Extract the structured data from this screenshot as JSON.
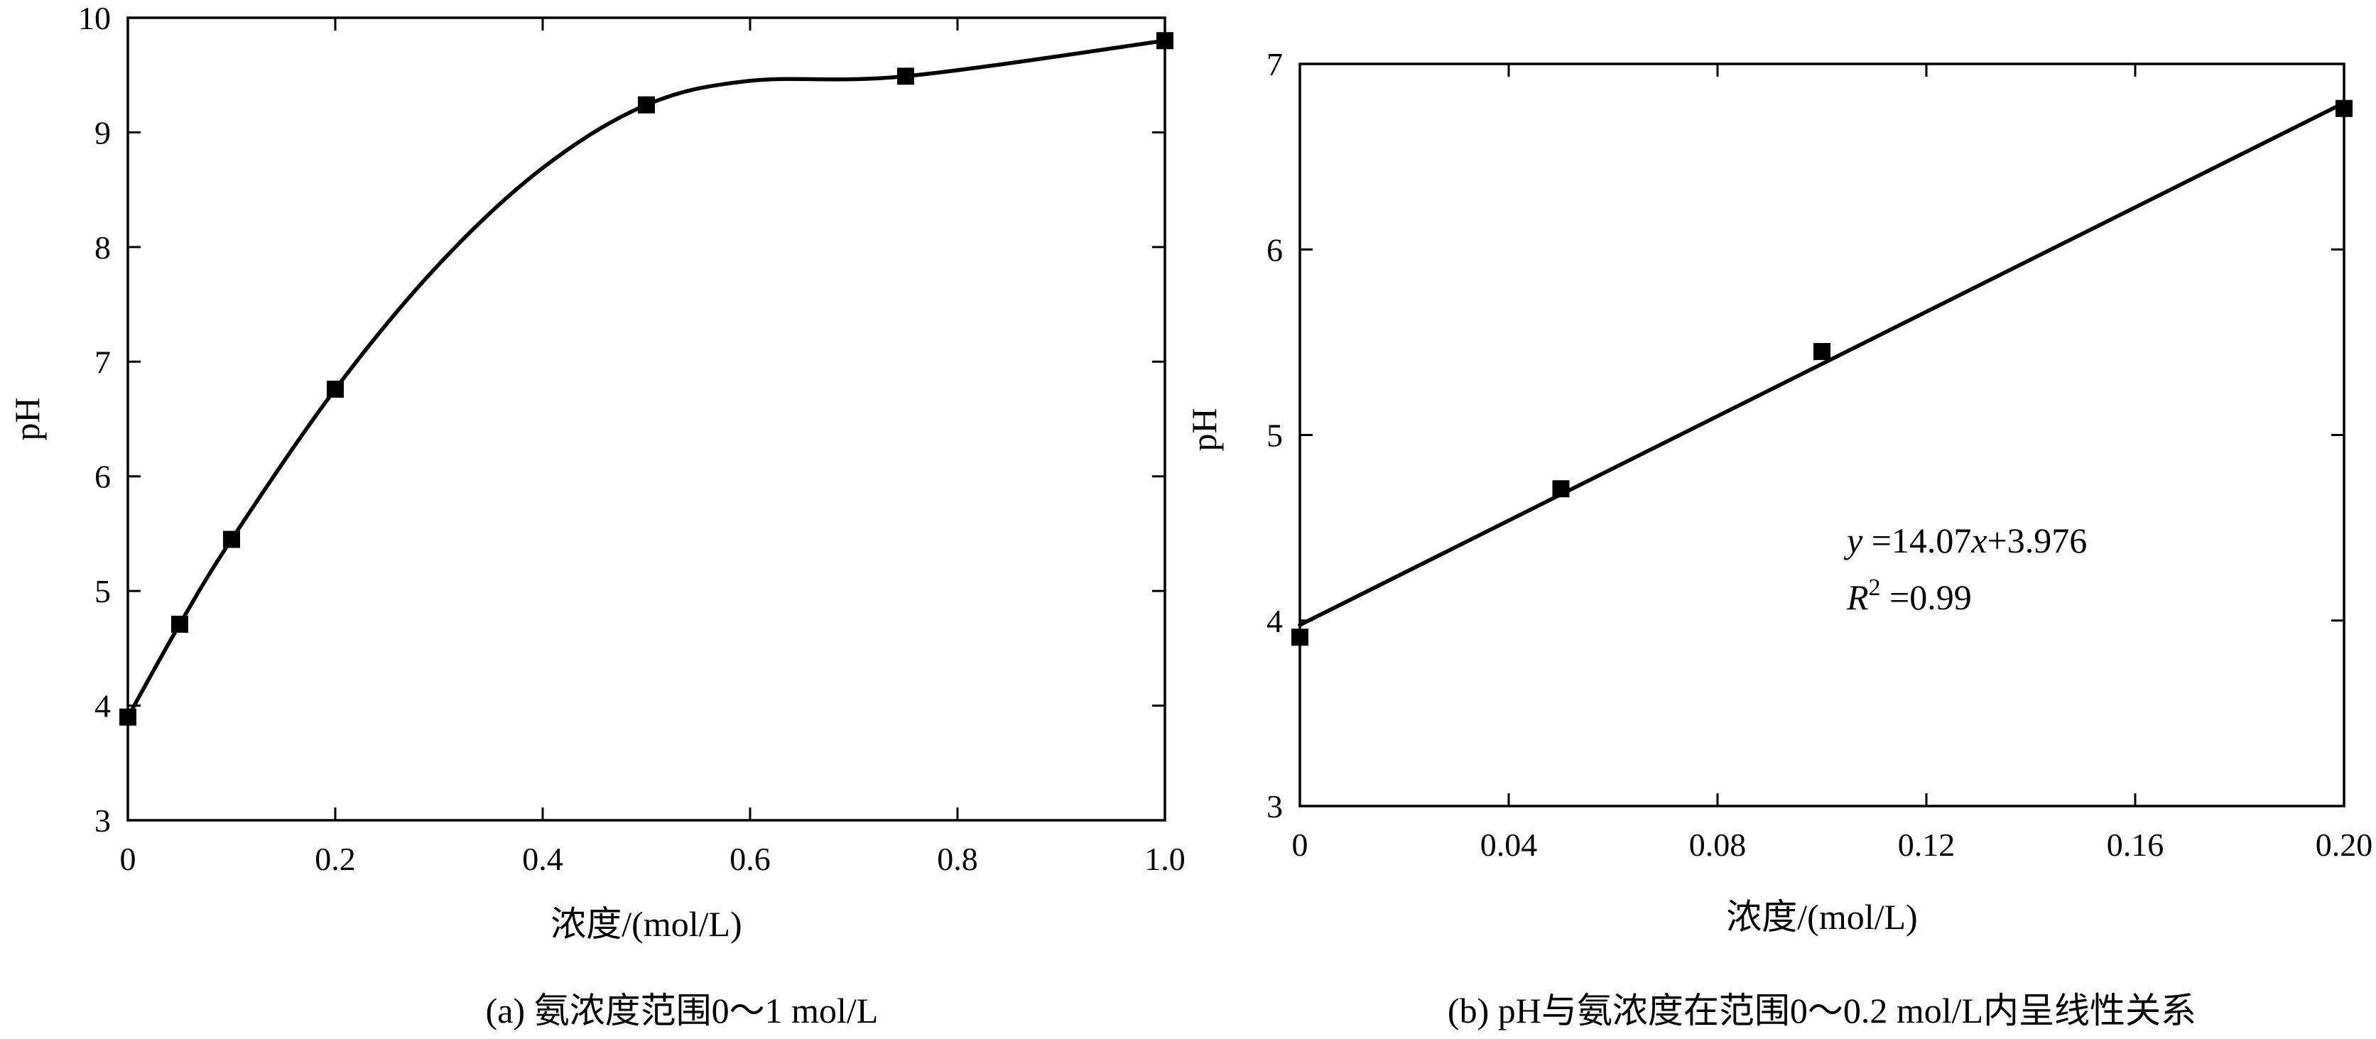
{
  "chart_data": [
    {
      "type": "line",
      "caption": "(a) 氨浓度范围0～1 mol/L",
      "xlabel": "浓度/(mol/L)",
      "ylabel": "pH",
      "xlim": [
        0,
        1.0
      ],
      "ylim": [
        3,
        10
      ],
      "xticks": [
        0,
        0.2,
        0.4,
        0.6,
        0.8,
        1.0
      ],
      "xtick_labels": [
        "0",
        "0.2",
        "0.4",
        "0.6",
        "0.8",
        "1.0"
      ],
      "yticks": [
        3,
        4,
        5,
        6,
        7,
        8,
        9,
        10
      ],
      "ytick_labels": [
        "3",
        "4",
        "5",
        "6",
        "7",
        "8",
        "9",
        "10"
      ],
      "grid": false,
      "series": [
        {
          "marker": "square",
          "x": [
            0,
            0.05,
            0.1,
            0.2,
            0.5,
            0.75,
            1.0
          ],
          "y": [
            3.9,
            4.71,
            5.45,
            6.76,
            9.24,
            9.49,
            9.8
          ]
        }
      ],
      "curve": {
        "x": [
          0,
          0.05,
          0.1,
          0.2,
          0.3,
          0.4,
          0.5,
          0.6,
          0.75,
          1.0
        ],
        "y": [
          3.9,
          4.71,
          5.45,
          6.76,
          7.85,
          8.69,
          9.24,
          9.45,
          9.49,
          9.8
        ]
      }
    },
    {
      "type": "scatter",
      "caption": "(b) pH与氨浓度在范围0～0.2 mol/L内呈线性关系",
      "xlabel": "浓度/(mol/L)",
      "ylabel": "pH",
      "xlim": [
        0,
        0.2
      ],
      "ylim": [
        3,
        7
      ],
      "xticks": [
        0,
        0.04,
        0.08,
        0.12,
        0.16,
        0.2
      ],
      "xtick_labels": [
        "0",
        "0.04",
        "0.08",
        "0.12",
        "0.16",
        "0.20"
      ],
      "yticks": [
        3,
        4,
        5,
        6,
        7
      ],
      "ytick_labels": [
        "3",
        "4",
        "5",
        "6",
        "7"
      ],
      "grid": false,
      "series": [
        {
          "marker": "square",
          "x": [
            0,
            0.05,
            0.1,
            0.2
          ],
          "y": [
            3.91,
            4.71,
            5.45,
            6.76
          ]
        }
      ],
      "fit": {
        "slope": 14.07,
        "intercept": 3.976
      },
      "annotation": {
        "eq_var": "y",
        "eq_rest1": " =14.07",
        "eq_var2": "x",
        "eq_rest2": "+3.976",
        "r2_var": "R",
        "r2_exp": "2",
        "r2_value": " =0.99"
      }
    }
  ]
}
